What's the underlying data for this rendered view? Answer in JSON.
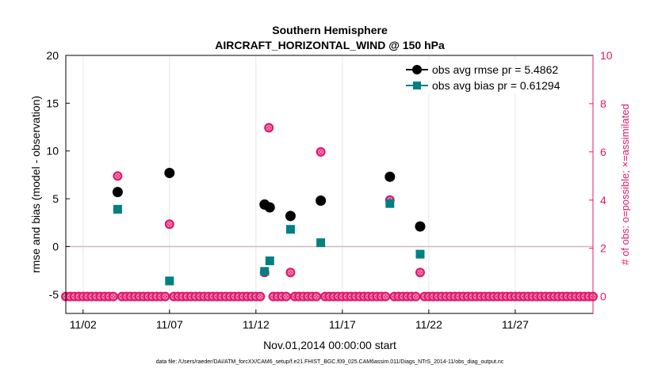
{
  "chart_data": {
    "type": "scatter",
    "title": "Southern Hemisphere",
    "subtitle": "AIRCRAFT_HORIZONTAL_WIND @ 150 hPa",
    "xlabel": "Nov.01,2014 00:00:00 start",
    "ylabel": "rmse and bias (model - observation)",
    "ylabel_right": "# of obs: o=possible; ×=assimilated",
    "x_ticks": [
      "11/02",
      "11/07",
      "11/12",
      "11/17",
      "11/22",
      "11/27"
    ],
    "x_tick_days": [
      2,
      7,
      12,
      17,
      22,
      27
    ],
    "xlim_days": [
      1,
      31.5
    ],
    "ylim": [
      -7,
      20
    ],
    "y_ticks": [
      -5,
      0,
      5,
      10,
      15,
      20
    ],
    "ylim_right": [
      -0.7,
      10
    ],
    "y_ticks_right": [
      0,
      2,
      4,
      6,
      8,
      10
    ],
    "grid": "vertical lines at x ticks",
    "zero_line_color": "#d3b8c0",
    "footnote": "data file: /Users/raeder/DAI/ATM_forcXX/CAM6_setup/f.e21.FHIST_BGC.f09_025.CAM6assim.011/Diags_NTrS_2014-11/obs_diag_output.nc",
    "legend_position": "top-right",
    "series": [
      {
        "name": "obs avg rmse pr = 5.4862",
        "color": "#000000",
        "marker": "circle",
        "axis": "left",
        "x_days": [
          4,
          7,
          12.5,
          12.8,
          14,
          15.75,
          19.75,
          21.5
        ],
        "values": [
          5.7,
          7.7,
          4.4,
          4.1,
          3.2,
          4.8,
          7.3,
          2.1
        ]
      },
      {
        "name": "obs avg bias pr = 0.61294",
        "color": "#008080",
        "marker": "square",
        "axis": "left",
        "x_days": [
          4,
          7,
          12.5,
          12.8,
          14,
          15.75,
          19.75,
          21.5
        ],
        "values": [
          3.9,
          -3.6,
          -2.6,
          -1.5,
          1.8,
          0.4,
          4.5,
          -0.8
        ]
      },
      {
        "name": "obs possible",
        "color": "#e0186c",
        "marker": "circle-open",
        "axis": "right",
        "x_days_start": 1.0,
        "x_days_step": 0.25,
        "nonzero": {
          "4": 5,
          "7": 3,
          "12.5": 1,
          "12.75": 7,
          "14": 1,
          "15.75": 6,
          "19.75": 4,
          "21.5": 1
        }
      }
    ]
  }
}
